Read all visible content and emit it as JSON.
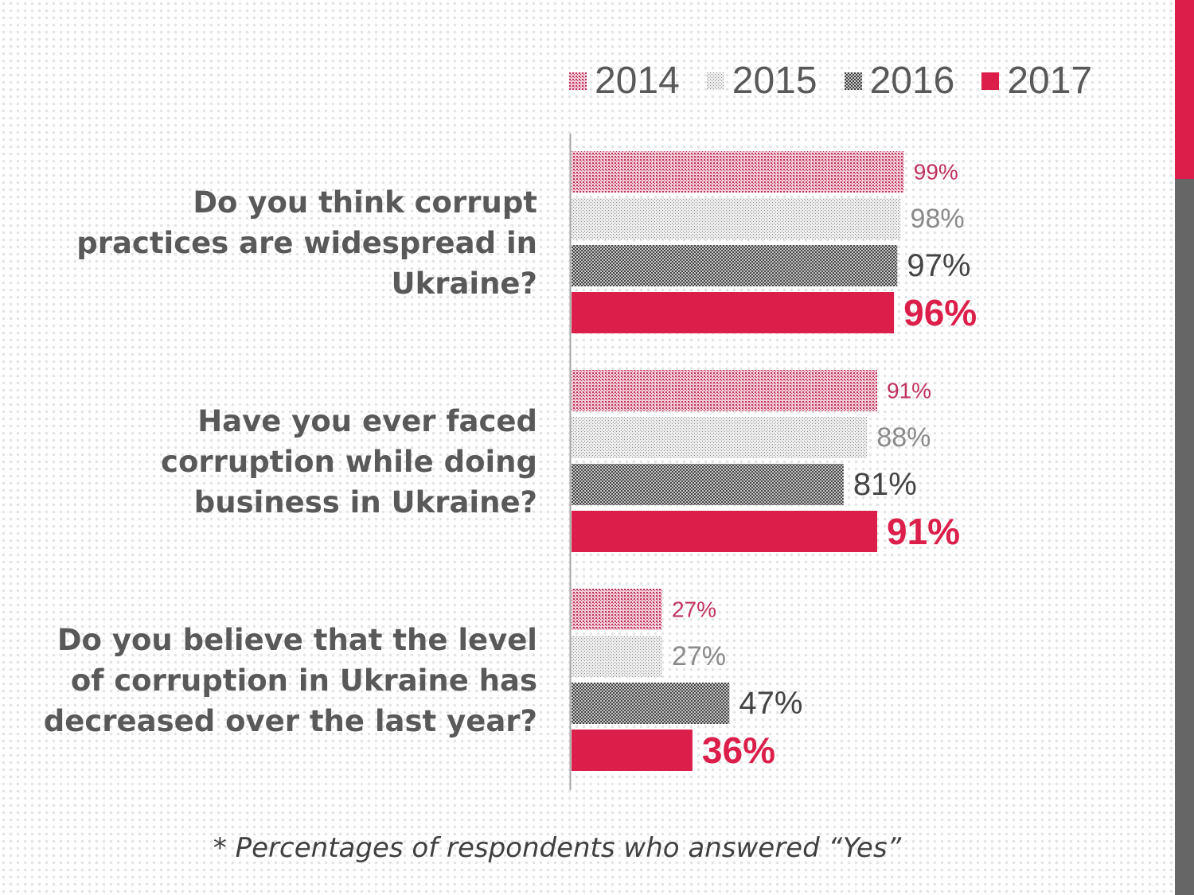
{
  "colors": {
    "2014": "#c0325e",
    "2015": "#8a8a8a",
    "2016": "#444444",
    "2017": "#dc1f4a",
    "accent": "#dc1f4a",
    "text": "#595959"
  },
  "footnote": "* Percentages of respondents who answered “Yes”",
  "chart_data": {
    "type": "bar",
    "orientation": "horizontal",
    "categories": [
      "Do you think corrupt practices are widespread in Ukraine?",
      "Have you ever faced corruption while doing business in Ukraine?",
      "Do you believe that the level of corruption in Ukraine has decreased over the last year?"
    ],
    "category_lines": [
      [
        "Do you think corrupt",
        "practices are widespread in",
        "Ukraine?"
      ],
      [
        "Have you ever faced",
        "corruption while doing",
        "business in Ukraine?"
      ],
      [
        "Do you believe that the level",
        "of corruption in Ukraine has",
        "decreased over the last year?"
      ]
    ],
    "series": [
      {
        "name": "2014",
        "values": [
          99,
          91,
          27
        ]
      },
      {
        "name": "2015",
        "values": [
          98,
          88,
          27
        ]
      },
      {
        "name": "2016",
        "values": [
          97,
          81,
          47
        ]
      },
      {
        "name": "2017",
        "values": [
          96,
          91,
          36
        ]
      }
    ],
    "data_labels": [
      [
        "99%",
        "91%",
        "27%"
      ],
      [
        "98%",
        "88%",
        "27%"
      ],
      [
        "97%",
        "81%",
        "47%"
      ],
      [
        "96%",
        "91%",
        "36%"
      ]
    ],
    "unit": "%",
    "xlim": [
      0,
      100
    ],
    "grid": false,
    "legend_position": "top"
  }
}
